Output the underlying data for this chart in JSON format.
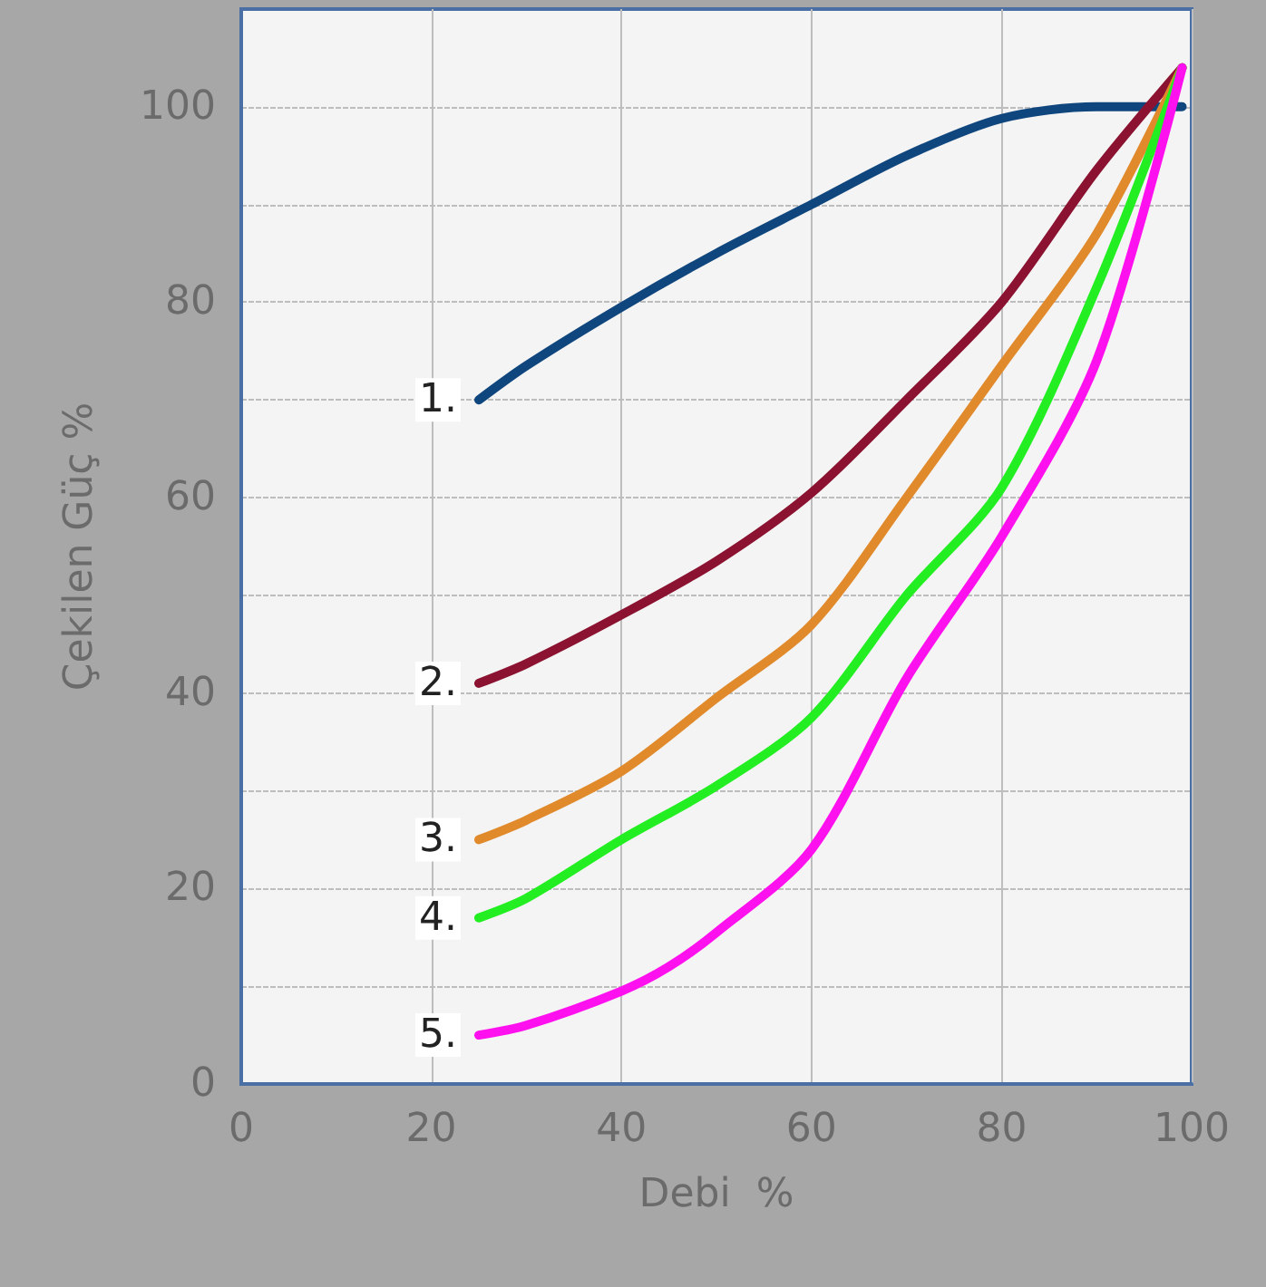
{
  "chart_data": {
    "type": "line",
    "xlabel": "Debi  %",
    "ylabel": "Çekilen Güç %",
    "xlim": [
      0,
      100
    ],
    "xticks": [
      0,
      20,
      40,
      60,
      80,
      100
    ],
    "ylim": [
      0,
      110
    ],
    "yticks": [
      0,
      {
        "value": 10,
        "label": null
      },
      20,
      {
        "value": 30,
        "label": null
      },
      40,
      {
        "value": 50,
        "label": null
      },
      60,
      {
        "value": 70,
        "label": null
      },
      80,
      {
        "value": 90,
        "label": null
      },
      100
    ],
    "grid": true,
    "legend": false,
    "marker": "none",
    "line_style": "solid",
    "series": [
      {
        "name": "1.",
        "color": "#10467e",
        "x": [
          25,
          30,
          40,
          50,
          60,
          70,
          80,
          90,
          99
        ],
        "values": [
          70,
          73.5,
          79.5,
          85,
          90,
          95,
          98.8,
          100,
          100
        ]
      },
      {
        "name": "2.",
        "color": "#8b1230",
        "x": [
          25,
          30,
          40,
          50,
          60,
          70,
          80,
          90,
          99
        ],
        "values": [
          41,
          43,
          48,
          53.5,
          60.5,
          70,
          80,
          93.5,
          104
        ]
      },
      {
        "name": "3.",
        "color": "#e08a2c",
        "x": [
          25,
          30,
          40,
          50,
          60,
          70,
          80,
          90,
          99
        ],
        "values": [
          25,
          27,
          32,
          39.5,
          47,
          60,
          73.5,
          87,
          104
        ]
      },
      {
        "name": "4.",
        "color": "#22ee22",
        "x": [
          25,
          30,
          40,
          50,
          60,
          70,
          80,
          90,
          99
        ],
        "values": [
          17,
          19,
          25,
          30.5,
          37.5,
          50,
          61,
          81.5,
          104
        ]
      },
      {
        "name": "5.",
        "color": "#ff10ee",
        "x": [
          25,
          30,
          40,
          45,
          50,
          60,
          70,
          80,
          90,
          99
        ],
        "values": [
          5,
          6,
          9.5,
          12,
          15.5,
          24,
          41.5,
          56,
          74,
          104
        ]
      }
    ]
  }
}
